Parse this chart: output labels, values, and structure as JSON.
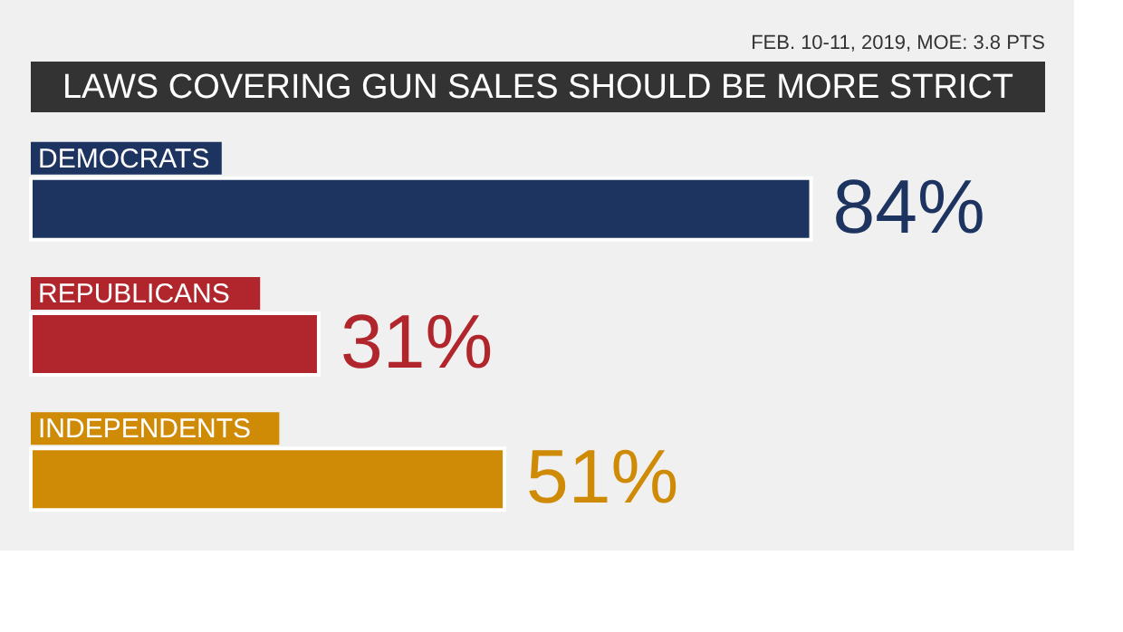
{
  "chart_data": {
    "type": "bar",
    "orientation": "horizontal",
    "title": "LAWS COVERING GUN SALES SHOULD BE MORE STRICT",
    "annotations": [
      "FEB. 10-11, 2019, MOE: 3.8 PTS"
    ],
    "categories": [
      "DEMOCRATS",
      "REPUBLICANS",
      "INDEPENDENTS"
    ],
    "values": [
      84,
      31,
      51
    ],
    "colors": [
      "#1d3461",
      "#b0262c",
      "#cf8a06"
    ],
    "value_labels": [
      "84%",
      "31%",
      "51%"
    ]
  }
}
